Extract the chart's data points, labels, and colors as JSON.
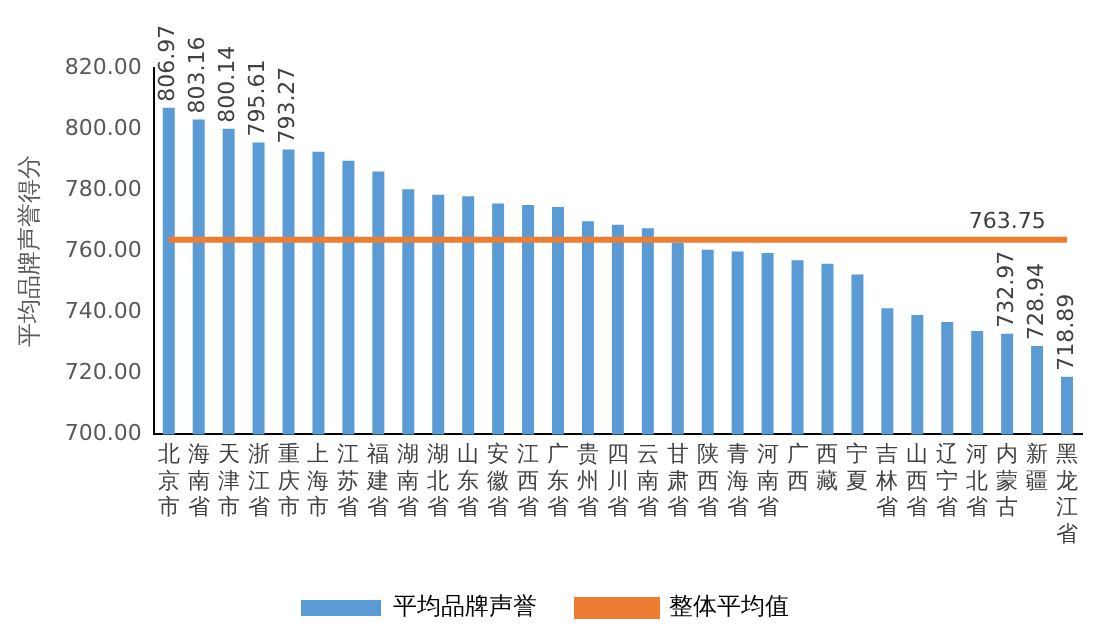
{
  "chart_data": {
    "type": "bar",
    "ylabel": "平均品牌声誉得分",
    "categories": [
      "北京市",
      "海南省",
      "天津市",
      "浙江省",
      "重庆市",
      "上海市",
      "江苏省",
      "福建省",
      "湖南省",
      "湖北省",
      "山东省",
      "安徽省",
      "江西省",
      "广东省",
      "贵州省",
      "四川省",
      "云南省",
      "甘肃省",
      "陕西省",
      "青海省",
      "河南省",
      "广西",
      "西藏",
      "宁夏",
      "吉林省",
      "山西省",
      "辽宁省",
      "河北省",
      "内蒙古",
      "新疆",
      "黑龙江省"
    ],
    "series": [
      {
        "name": "平均品牌声誉",
        "color": "#5b9bd5",
        "values": [
          806.97,
          803.16,
          800.14,
          795.61,
          793.27,
          792.6,
          789.6,
          786.1,
          780.3,
          778.5,
          778.0,
          775.6,
          775.1,
          774.5,
          769.8,
          768.7,
          767.5,
          762.8,
          760.5,
          759.9,
          759.4,
          757.0,
          755.9,
          752.4,
          741.3,
          739.1,
          736.8,
          733.9,
          732.97,
          728.94,
          718.89
        ],
        "value_labels": [
          "806.97",
          "803.16",
          "800.14",
          "795.61",
          "793.27",
          null,
          null,
          null,
          null,
          null,
          null,
          null,
          null,
          null,
          null,
          null,
          null,
          null,
          null,
          null,
          null,
          null,
          null,
          null,
          null,
          null,
          null,
          null,
          "732.97",
          "728.94",
          "718.89"
        ]
      },
      {
        "name": "整体平均值",
        "type": "line",
        "color": "#ed7d31",
        "marker": "none",
        "values": [
          763.75,
          763.75,
          763.75,
          763.75,
          763.75,
          763.75,
          763.75,
          763.75,
          763.75,
          763.75,
          763.75,
          763.75,
          763.75,
          763.75,
          763.75,
          763.75,
          763.75,
          763.75,
          763.75,
          763.75,
          763.75,
          763.75,
          763.75,
          763.75,
          763.75,
          763.75,
          763.75,
          763.75,
          763.75,
          763.75,
          763.75
        ],
        "value_labels": [
          null,
          null,
          null,
          null,
          null,
          null,
          null,
          null,
          null,
          null,
          null,
          null,
          null,
          null,
          null,
          null,
          null,
          null,
          null,
          null,
          null,
          null,
          null,
          null,
          null,
          null,
          null,
          null,
          "763.75",
          null,
          null
        ]
      }
    ],
    "ylim": [
      700,
      820
    ],
    "yticks": [
      {
        "value": 700,
        "label": "700.00"
      },
      {
        "value": 720,
        "label": "720.00"
      },
      {
        "value": 740,
        "label": "740.00"
      },
      {
        "value": 760,
        "label": "760.00"
      },
      {
        "value": 780,
        "label": "780.00"
      },
      {
        "value": 800,
        "label": "800.00"
      },
      {
        "value": 820,
        "label": "820.00"
      }
    ],
    "grid": false,
    "legend": "bottom"
  }
}
